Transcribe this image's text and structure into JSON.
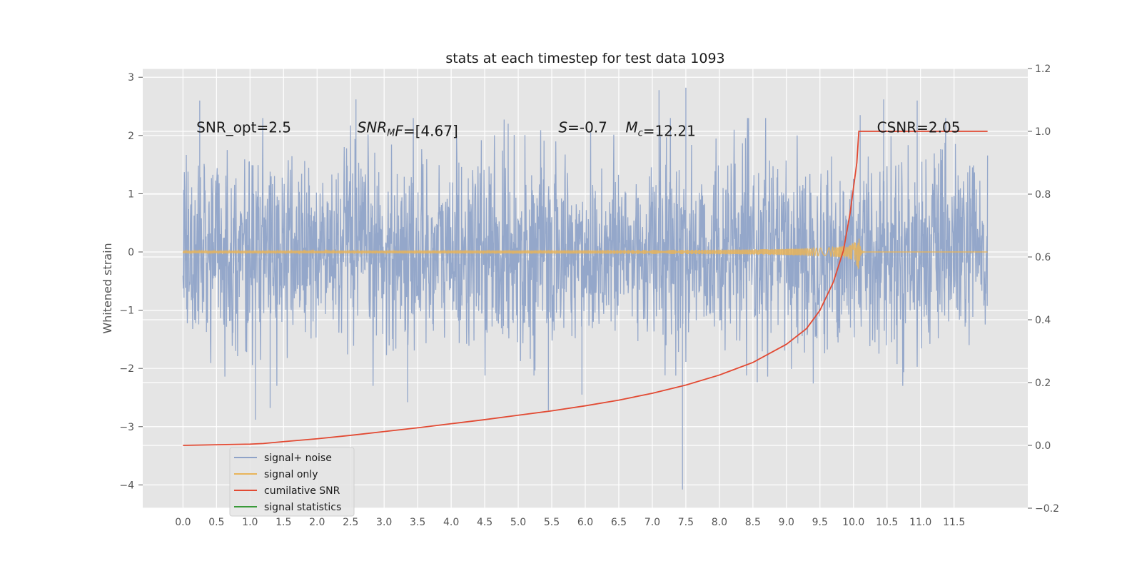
{
  "chart_data": {
    "type": "line",
    "title": "stats at each timestep for test data 1093",
    "ylabel": "Whitened strain",
    "xlabel": "",
    "y2label": "",
    "xlim": [
      -0.6,
      12.6
    ],
    "ylim": [
      -4.4,
      3.15
    ],
    "y2lim": [
      -0.2,
      1.2
    ],
    "xticks": [
      0.0,
      0.5,
      1.0,
      1.5,
      2.0,
      2.5,
      3.0,
      3.5,
      4.0,
      4.5,
      5.0,
      5.5,
      6.0,
      6.5,
      7.0,
      7.5,
      8.0,
      8.5,
      9.0,
      9.5,
      10.0,
      10.5,
      11.0,
      11.5
    ],
    "xtick_labels": [
      "0.0",
      "0.5",
      "1.0",
      "1.5",
      "2.0",
      "2.5",
      "3.0",
      "3.5",
      "4.0",
      "4.5",
      "5.0",
      "5.5",
      "6.0",
      "6.5",
      "7.0",
      "7.5",
      "8.0",
      "8.5",
      "9.0",
      "9.5",
      "10.0",
      "10.5",
      "11.0",
      "11.5"
    ],
    "yticks": [
      -4,
      -3,
      -2,
      -1,
      0,
      1,
      2,
      3
    ],
    "ytick_labels": [
      "−4",
      "−3",
      "−2",
      "−1",
      "0",
      "1",
      "2",
      "3"
    ],
    "y2ticks": [
      -0.2,
      0.0,
      0.2,
      0.4,
      0.6,
      0.8,
      1.0,
      1.2
    ],
    "y2tick_labels": [
      "−0.2",
      "0.0",
      "0.2",
      "0.4",
      "0.6",
      "0.8",
      "1.0",
      "1.2"
    ],
    "grid": true,
    "legend_position": "lower-left",
    "series": [
      {
        "name": "signal+ noise",
        "color": "#8fa3c8",
        "axis": "left",
        "kind": "noise",
        "x_range": [
          0.0,
          12.0
        ],
        "amplitude_std": 0.8,
        "notable_points": [
          {
            "x": 0.25,
            "y": 2.6
          },
          {
            "x": 1.08,
            "y": -2.88
          },
          {
            "x": 1.3,
            "y": -2.68
          },
          {
            "x": 2.58,
            "y": 2.62
          },
          {
            "x": 3.35,
            "y": -2.58
          },
          {
            "x": 5.45,
            "y": -2.72
          },
          {
            "x": 5.95,
            "y": -2.45
          },
          {
            "x": 7.1,
            "y": 2.78
          },
          {
            "x": 7.45,
            "y": -4.08
          },
          {
            "x": 7.5,
            "y": 2.82
          },
          {
            "x": 10.1,
            "y": 2.35
          },
          {
            "x": 10.45,
            "y": 2.62
          },
          {
            "x": 10.95,
            "y": 2.6
          }
        ]
      },
      {
        "name": "signal only",
        "color": "#e8b45a",
        "axis": "left",
        "kind": "chirp",
        "x_range": [
          0.0,
          12.0
        ],
        "merger_x": 10.08,
        "peak_amplitude": 0.28
      },
      {
        "name": "cumilative SNR",
        "color": "#e24a33",
        "axis": "right",
        "x": [
          0.0,
          0.5,
          1.0,
          1.2,
          1.5,
          2.0,
          2.5,
          3.0,
          3.5,
          4.0,
          4.5,
          5.0,
          5.5,
          6.0,
          6.5,
          7.0,
          7.5,
          8.0,
          8.5,
          9.0,
          9.3,
          9.5,
          9.7,
          9.85,
          9.95,
          10.05,
          10.08,
          10.5,
          11.0,
          11.5,
          12.0
        ],
        "values": [
          0.0,
          0.002,
          0.004,
          0.006,
          0.012,
          0.021,
          0.032,
          0.044,
          0.056,
          0.069,
          0.082,
          0.096,
          0.11,
          0.126,
          0.144,
          0.166,
          0.192,
          0.224,
          0.264,
          0.322,
          0.372,
          0.43,
          0.52,
          0.62,
          0.74,
          0.9,
          1.0,
          1.0,
          1.0,
          1.0,
          1.0
        ]
      },
      {
        "name": "signal statistics",
        "color": "#3a9a3a",
        "axis": "left",
        "kind": "legend-only"
      }
    ],
    "annotations": [
      {
        "x": 0.2,
        "y": 2.1,
        "parts": [
          {
            "t": "SNR_opt=2.5"
          }
        ]
      },
      {
        "x": 2.6,
        "y": 2.1,
        "parts": [
          {
            "t": "SNR",
            "i": true
          },
          {
            "t": "M",
            "i": true,
            "sub": true
          },
          {
            "t": "F",
            "i": true
          },
          {
            "t": "=[4.67]"
          }
        ]
      },
      {
        "x": 5.6,
        "y": 2.1,
        "parts": [
          {
            "t": "S",
            "i": true
          },
          {
            "t": "=-0.7"
          }
        ]
      },
      {
        "x": 6.6,
        "y": 2.1,
        "parts": [
          {
            "t": "M",
            "i": true
          },
          {
            "t": "c",
            "i": true,
            "sub": true
          },
          {
            "t": "=12.21"
          }
        ]
      },
      {
        "x": 10.35,
        "y": 2.1,
        "parts": [
          {
            "t": "CSNR=2.05"
          }
        ]
      }
    ]
  }
}
